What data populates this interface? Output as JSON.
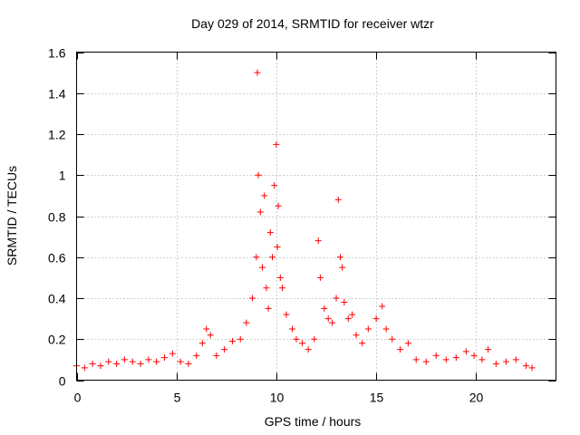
{
  "chart_data": {
    "type": "scatter",
    "title": "Day 029 of 2014, SRMTID for receiver wtzr",
    "xlabel": "GPS time / hours",
    "ylabel": "SRMTID / TECUs",
    "xlim": [
      0,
      24
    ],
    "ylim": [
      0,
      1.6
    ],
    "x_ticks": [
      0,
      5,
      10,
      15,
      20
    ],
    "x_tick_labels": [
      "0",
      "5",
      "10",
      "15",
      "20"
    ],
    "y_ticks": [
      0,
      0.2,
      0.4,
      0.6,
      0.8,
      1.0,
      1.2,
      1.4,
      1.6
    ],
    "y_tick_labels": [
      "0",
      "0.2",
      "0.4",
      "0.6",
      "0.8",
      "1",
      "1.2",
      "1.4",
      "1.6"
    ],
    "grid": true,
    "marker": "+",
    "marker_color": "#ff0000",
    "series": [
      {
        "name": "SRMTID",
        "x": [
          0.0,
          0.4,
          0.8,
          1.2,
          1.6,
          2.0,
          2.4,
          2.8,
          3.2,
          3.6,
          4.0,
          4.4,
          4.8,
          5.2,
          5.6,
          6.0,
          6.3,
          6.5,
          6.7,
          7.0,
          7.4,
          7.8,
          8.2,
          8.5,
          8.8,
          9.0,
          9.05,
          9.1,
          9.2,
          9.3,
          9.4,
          9.5,
          9.6,
          9.7,
          9.8,
          9.9,
          10.0,
          10.05,
          10.1,
          10.2,
          10.3,
          10.5,
          10.8,
          11.0,
          11.3,
          11.6,
          11.9,
          12.1,
          12.2,
          12.4,
          12.6,
          12.8,
          13.0,
          13.1,
          13.2,
          13.3,
          13.4,
          13.6,
          13.8,
          14.0,
          14.3,
          14.6,
          15.0,
          15.3,
          15.5,
          15.8,
          16.2,
          16.6,
          17.0,
          17.5,
          18.0,
          18.5,
          19.0,
          19.5,
          19.9,
          20.3,
          20.6,
          21.0,
          21.5,
          22.0,
          22.5,
          22.8
        ],
        "y": [
          0.07,
          0.06,
          0.08,
          0.07,
          0.09,
          0.08,
          0.1,
          0.09,
          0.08,
          0.1,
          0.09,
          0.11,
          0.13,
          0.09,
          0.08,
          0.12,
          0.18,
          0.25,
          0.22,
          0.12,
          0.15,
          0.19,
          0.2,
          0.28,
          0.4,
          0.6,
          1.5,
          1.0,
          0.82,
          0.55,
          0.9,
          0.45,
          0.35,
          0.72,
          0.6,
          0.95,
          1.15,
          0.65,
          0.85,
          0.5,
          0.45,
          0.32,
          0.25,
          0.2,
          0.18,
          0.15,
          0.2,
          0.68,
          0.5,
          0.35,
          0.3,
          0.28,
          0.4,
          0.88,
          0.6,
          0.55,
          0.38,
          0.3,
          0.32,
          0.22,
          0.18,
          0.25,
          0.3,
          0.36,
          0.25,
          0.2,
          0.15,
          0.18,
          0.1,
          0.09,
          0.12,
          0.1,
          0.11,
          0.14,
          0.12,
          0.1,
          0.15,
          0.08,
          0.09,
          0.1,
          0.07,
          0.06
        ]
      }
    ]
  }
}
